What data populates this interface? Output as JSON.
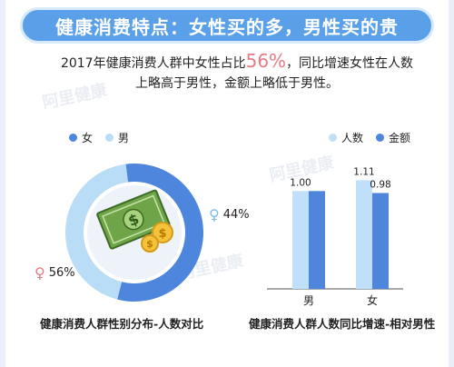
{
  "title": "健康消费特点：女性买的多，男性买的贵",
  "intro": {
    "line1_pre": "2017年健康消费人群中女性占比",
    "line1_highlight": "56%",
    "line1_post": "，同比增速女性在人数",
    "line2": "上略高于男性，金额上略低于男性。"
  },
  "watermark": "阿里健康",
  "colors": {
    "female": "#4d86dc",
    "male": "#b9dcf7",
    "count": "#bfe0f8",
    "amount": "#4f86dc",
    "title_bg": "#5aa0e8",
    "highlight": "#e77a85"
  },
  "chart_data": [
    {
      "type": "pie",
      "variant": "donut",
      "legend": [
        {
          "name": "女",
          "color": "#4d86dc"
        },
        {
          "name": "男",
          "color": "#b9dcf7"
        }
      ],
      "slices": [
        {
          "name": "女",
          "value": 56,
          "label": "56%",
          "symbol": "♀"
        },
        {
          "name": "男",
          "value": 44,
          "label": "44%",
          "symbol": "♀"
        }
      ],
      "caption": "健康消费人群性别分布-人数对比"
    },
    {
      "type": "bar",
      "categories": [
        "男",
        "女"
      ],
      "series": [
        {
          "name": "人数",
          "values": [
            1.0,
            1.11
          ],
          "labels": [
            "1.00",
            "1.11"
          ],
          "color": "#bfe0f8"
        },
        {
          "name": "金额",
          "values": [
            1.0,
            0.98
          ],
          "labels": [
            "",
            "0.98"
          ],
          "color": "#4f86dc"
        }
      ],
      "ylim": [
        0,
        1.3
      ],
      "legend_position": "top-right",
      "caption": "健康消费人群人数同比增速-相对男性"
    }
  ]
}
